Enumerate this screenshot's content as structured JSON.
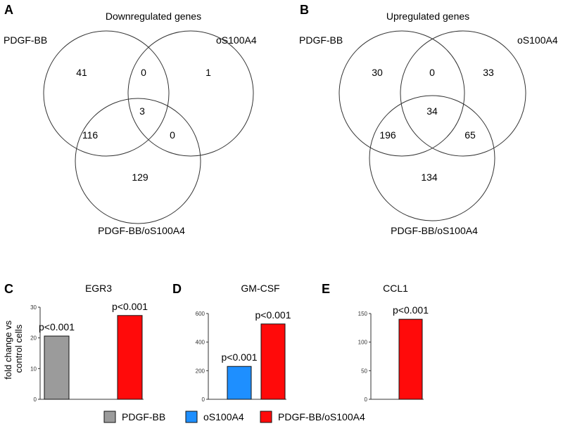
{
  "venn_panels": [
    {
      "letter": "A",
      "title": "Downregulated  genes",
      "set_labels": {
        "left": "PDGF-BB",
        "right": "oS100A4",
        "bottom": "PDGF-BB/oS100A4"
      },
      "regions": {
        "left_only": "41",
        "left_right": "0",
        "right_only": "1",
        "center": "3",
        "left_bottom": "116",
        "right_bottom": "0",
        "bottom_only": "129"
      }
    },
    {
      "letter": "B",
      "title": "Upregulated  genes",
      "set_labels": {
        "left": "PDGF-BB",
        "right": "oS100A4",
        "bottom": "PDGF-BB/oS100A4"
      },
      "regions": {
        "left_only": "30",
        "left_right": "0",
        "right_only": "33",
        "center": "34",
        "left_bottom": "196",
        "right_bottom": "65",
        "bottom_only": "134"
      }
    }
  ],
  "ylabel": "fold change vs control cells",
  "ylabel_lines": [
    "fold change vs",
    "control cells"
  ],
  "legend": [
    {
      "label": "PDGF-BB",
      "color": "#9b9b9b"
    },
    {
      "label": "oS100A4",
      "color": "#1e8fff"
    },
    {
      "label": "PDGF-BB/oS100A4",
      "color": "#ff0a0a"
    }
  ],
  "chart_data": [
    {
      "type": "bar",
      "letter": "C",
      "title": "EGR3",
      "categories": [
        "PDGF-BB",
        "oS100A4",
        "PDGF-BB/oS100A4"
      ],
      "values": [
        20.6,
        0,
        27.3
      ],
      "annotations": [
        "p<0.001",
        "",
        "p<0.001"
      ],
      "yticks": [
        0,
        10,
        20,
        30
      ],
      "ylim": [
        0,
        30
      ],
      "colors": [
        "#9b9b9b",
        "#1e8fff",
        "#ff0a0a"
      ]
    },
    {
      "type": "bar",
      "letter": "D",
      "title": "GM-CSF",
      "categories": [
        "PDGF-BB",
        "oS100A4",
        "PDGF-BB/oS100A4"
      ],
      "values": [
        0,
        230,
        527
      ],
      "annotations": [
        "",
        "p<0.001",
        "p<0.001"
      ],
      "yticks": [
        0,
        200,
        400,
        600
      ],
      "ylim": [
        0,
        600
      ],
      "colors": [
        "#9b9b9b",
        "#1e8fff",
        "#ff0a0a"
      ]
    },
    {
      "type": "bar",
      "letter": "E",
      "title": "CCL1",
      "categories": [
        "PDGF-BB",
        "oS100A4",
        "PDGF-BB/oS100A4"
      ],
      "values": [
        0,
        0,
        140
      ],
      "annotations": [
        "",
        "",
        "p<0.001"
      ],
      "yticks": [
        0,
        50,
        100,
        150
      ],
      "ylim": [
        0,
        150
      ],
      "colors": [
        "#9b9b9b",
        "#1e8fff",
        "#ff0a0a"
      ]
    }
  ]
}
